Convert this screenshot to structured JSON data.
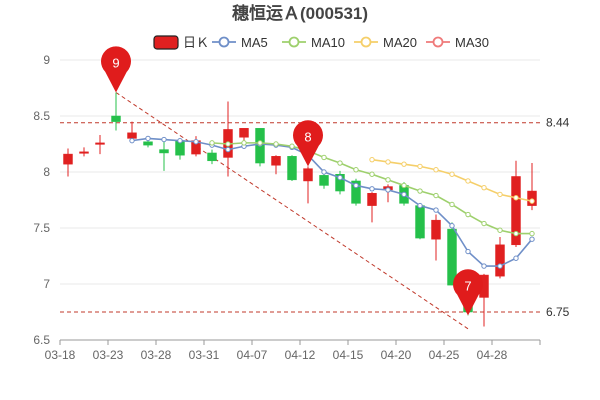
{
  "chart_data": {
    "type": "candlestick",
    "title": "穗恒运Ａ(000531)",
    "ylim": [
      6.5,
      9
    ],
    "yticks": [
      "6.5",
      "7",
      "7.5",
      "8",
      "8.5",
      "9"
    ],
    "ytick_values": [
      6.5,
      7,
      7.5,
      8,
      8.5,
      9
    ],
    "xtick_labels": [
      "03-18",
      "03-23",
      "03-28",
      "03-31",
      "04-07",
      "04-12",
      "04-15",
      "04-20",
      "04-25",
      "04-28"
    ],
    "xtick_indices": [
      0,
      3,
      6,
      9,
      12,
      15,
      18,
      21,
      24,
      27
    ],
    "grid": true,
    "legend_position": "top",
    "legend": [
      {
        "name": "日Ｋ",
        "color": "#e02020",
        "kind": "candle"
      },
      {
        "name": "MA5",
        "color": "#6f8fc8",
        "kind": "line"
      },
      {
        "name": "MA10",
        "color": "#9ed06d",
        "kind": "line"
      },
      {
        "name": "MA20",
        "color": "#f5cf6a",
        "kind": "line"
      },
      {
        "name": "MA30",
        "color": "#ef7a7a",
        "kind": "line"
      }
    ],
    "candles": [
      {
        "open": 8.07,
        "close": 8.16,
        "high": 8.21,
        "low": 7.96
      },
      {
        "open": 8.17,
        "close": 8.18,
        "high": 8.22,
        "low": 8.14
      },
      {
        "open": 8.25,
        "close": 8.26,
        "high": 8.33,
        "low": 8.16
      },
      {
        "open": 8.5,
        "close": 8.45,
        "high": 8.71,
        "low": 8.37
      },
      {
        "open": 8.3,
        "close": 8.35,
        "high": 8.45,
        "low": 8.28
      },
      {
        "open": 8.27,
        "close": 8.24,
        "high": 8.31,
        "low": 8.22
      },
      {
        "open": 8.2,
        "close": 8.17,
        "high": 8.27,
        "low": 8.01
      },
      {
        "open": 8.28,
        "close": 8.15,
        "high": 8.3,
        "low": 8.11
      },
      {
        "open": 8.16,
        "close": 8.28,
        "high": 8.32,
        "low": 8.14
      },
      {
        "open": 8.17,
        "close": 8.1,
        "high": 8.2,
        "low": 8.07
      },
      {
        "open": 8.13,
        "close": 8.38,
        "high": 8.63,
        "low": 7.96
      },
      {
        "open": 8.31,
        "close": 8.39,
        "high": 8.39,
        "low": 8.28
      },
      {
        "open": 8.39,
        "close": 8.08,
        "high": 8.39,
        "low": 8.05
      },
      {
        "open": 8.06,
        "close": 8.14,
        "high": 8.15,
        "low": 7.98
      },
      {
        "open": 8.14,
        "close": 7.93,
        "high": 8.15,
        "low": 7.92
      },
      {
        "open": 7.92,
        "close": 8.03,
        "high": 8.05,
        "low": 7.72
      },
      {
        "open": 7.97,
        "close": 7.88,
        "high": 8.0,
        "low": 7.85
      },
      {
        "open": 7.98,
        "close": 7.83,
        "high": 8.01,
        "low": 7.8
      },
      {
        "open": 7.92,
        "close": 7.72,
        "high": 7.94,
        "low": 7.7
      },
      {
        "open": 7.7,
        "close": 7.81,
        "high": 7.82,
        "low": 7.55
      },
      {
        "open": 7.84,
        "close": 7.87,
        "high": 7.89,
        "low": 7.73
      },
      {
        "open": 7.88,
        "close": 7.72,
        "high": 7.91,
        "low": 7.7
      },
      {
        "open": 7.7,
        "close": 7.41,
        "high": 7.71,
        "low": 7.4
      },
      {
        "open": 7.4,
        "close": 7.57,
        "high": 7.62,
        "low": 7.21
      },
      {
        "open": 7.49,
        "close": 6.99,
        "high": 7.55,
        "low": 6.99
      },
      {
        "open": 6.99,
        "close": 6.75,
        "high": 7.05,
        "low": 6.72
      },
      {
        "open": 6.88,
        "close": 7.08,
        "high": 7.09,
        "low": 6.62
      },
      {
        "open": 7.07,
        "close": 7.35,
        "high": 7.42,
        "low": 7.05
      },
      {
        "open": 7.35,
        "close": 7.96,
        "high": 8.1,
        "low": 7.33
      },
      {
        "open": 7.7,
        "close": 7.83,
        "high": 8.08,
        "low": 7.66
      }
    ],
    "ma5": [
      null,
      null,
      null,
      null,
      8.28,
      8.3,
      8.29,
      8.28,
      8.27,
      8.24,
      8.2,
      8.23,
      8.25,
      8.24,
      8.22,
      8.15,
      8.0,
      7.95,
      7.88,
      7.85,
      7.84,
      7.8,
      7.7,
      7.66,
      7.52,
      7.29,
      7.16,
      7.16,
      7.23,
      7.4
    ],
    "ma10": [
      null,
      null,
      null,
      null,
      null,
      null,
      null,
      null,
      null,
      8.26,
      8.25,
      8.26,
      8.26,
      8.25,
      8.23,
      8.19,
      8.13,
      8.08,
      8.02,
      7.98,
      7.93,
      7.88,
      7.83,
      7.79,
      7.71,
      7.62,
      7.54,
      7.48,
      7.45,
      7.45
    ],
    "ma20": [
      null,
      null,
      null,
      null,
      null,
      null,
      null,
      null,
      null,
      null,
      null,
      null,
      null,
      null,
      null,
      null,
      null,
      null,
      null,
      8.11,
      8.09,
      8.07,
      8.05,
      8.02,
      7.98,
      7.92,
      7.86,
      7.8,
      7.77,
      7.74
    ],
    "ma30": [],
    "reference_lines": [
      {
        "value": 8.44,
        "label": "8.44"
      },
      {
        "value": 6.75,
        "label": "6.75"
      }
    ],
    "markers": [
      {
        "label": "9",
        "index": 3,
        "value": 8.71
      },
      {
        "label": "8",
        "index": 15,
        "value": 8.05
      },
      {
        "label": "7",
        "index": 25,
        "value": 6.72
      }
    ],
    "trend_line": {
      "from_index": 3,
      "from_value": 8.71,
      "to_index": 25,
      "to_value": 6.6
    },
    "colors": {
      "up": "#e02020",
      "down": "#25c04a",
      "grid": "#e9e9e9",
      "ref_line": "#c0392b",
      "pin": "#e01c1c",
      "axis": "#999999"
    }
  }
}
